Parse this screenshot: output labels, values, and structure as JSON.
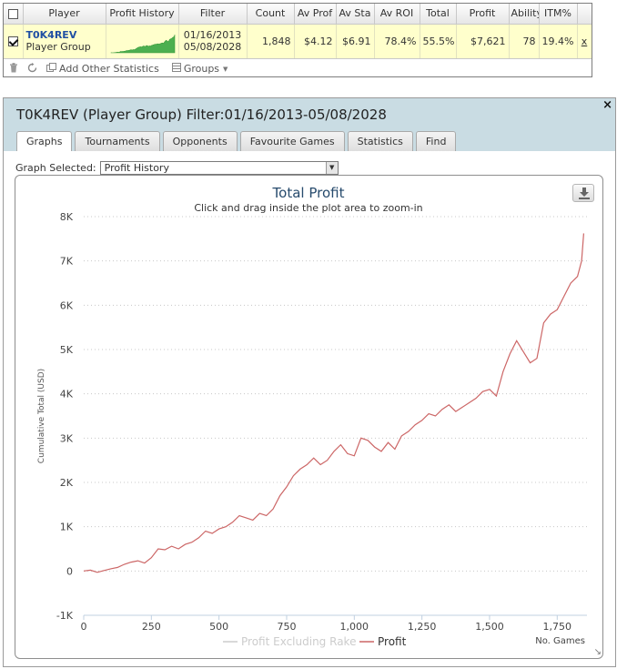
{
  "stats_table": {
    "columns": [
      "",
      "Player",
      "Profit History",
      "Filter",
      "Count",
      "Av Prof",
      "Av Sta",
      "Av ROI",
      "Total",
      "Profit",
      "Ability",
      "ITM%",
      ""
    ],
    "row": {
      "selected": true,
      "player_name": "T0K4REV",
      "player_type": "Player Group",
      "filter_start": "01/16/2013",
      "filter_end": "05/08/2028",
      "count": "1,848",
      "av_profit": "$4.12",
      "av_stake": "$6.91",
      "av_roi": "78.4%",
      "total": "55.5%",
      "profit": "$7,621",
      "ability": "78",
      "itm": "19.4%",
      "close": "x"
    },
    "toolbar": {
      "delete_icon": "trash-icon",
      "refresh_icon": "refresh-icon",
      "add_stats_label": "Add Other Statistics",
      "groups_label": "Groups"
    }
  },
  "report": {
    "title": "T0K4REV (Player Group) Filter:01/16/2013-05/08/2028",
    "close_label": "×",
    "tabs": [
      "Graphs",
      "Tournaments",
      "Opponents",
      "Favourite Games",
      "Statistics",
      "Find"
    ],
    "active_tab": "Graphs",
    "graph_selected_label": "Graph Selected:",
    "graph_selected_value": "Profit History"
  },
  "chart_data": {
    "type": "line",
    "title": "Total Profit",
    "subtitle": "Click and drag inside the plot area to zoom-in",
    "xlabel": "No. Games",
    "ylabel": "Cumulative Total (USD)",
    "xlim": [
      0,
      1860
    ],
    "ylim": [
      -1000,
      8000
    ],
    "x_ticks": [
      0,
      250,
      500,
      750,
      1000,
      1250,
      1500,
      1750
    ],
    "x_tick_labels": [
      "0",
      "250",
      "500",
      "750",
      "1,000",
      "1,250",
      "1,500",
      "1,750"
    ],
    "y_ticks": [
      -1000,
      0,
      1000,
      2000,
      3000,
      4000,
      5000,
      6000,
      7000,
      8000
    ],
    "y_tick_labels": [
      "-1K",
      "0",
      "1K",
      "2K",
      "3K",
      "4K",
      "5K",
      "6K",
      "7K",
      "8K"
    ],
    "grid": true,
    "legend_position": "bottom-center",
    "series": [
      {
        "name": "Profit Excluding Rake",
        "color": "#dddddd",
        "visible": false,
        "x": [],
        "y": []
      },
      {
        "name": "Profit",
        "color": "#cc6666",
        "visible": true,
        "x": [
          0,
          25,
          50,
          75,
          100,
          125,
          150,
          175,
          200,
          225,
          250,
          275,
          300,
          325,
          350,
          375,
          400,
          425,
          450,
          475,
          500,
          525,
          550,
          575,
          600,
          625,
          650,
          675,
          700,
          725,
          750,
          775,
          800,
          825,
          850,
          875,
          900,
          925,
          950,
          975,
          1000,
          1025,
          1050,
          1075,
          1100,
          1125,
          1150,
          1175,
          1200,
          1225,
          1250,
          1275,
          1300,
          1325,
          1350,
          1375,
          1400,
          1425,
          1450,
          1475,
          1500,
          1525,
          1550,
          1575,
          1600,
          1625,
          1650,
          1675,
          1700,
          1725,
          1750,
          1775,
          1800,
          1825,
          1840,
          1848
        ],
        "y": [
          0,
          20,
          -30,
          10,
          50,
          80,
          150,
          200,
          230,
          180,
          300,
          500,
          480,
          560,
          500,
          600,
          650,
          750,
          900,
          850,
          950,
          1000,
          1100,
          1250,
          1200,
          1150,
          1300,
          1250,
          1400,
          1700,
          1900,
          2150,
          2300,
          2400,
          2550,
          2400,
          2500,
          2700,
          2850,
          2650,
          2600,
          3000,
          2950,
          2800,
          2700,
          2900,
          2750,
          3050,
          3150,
          3300,
          3400,
          3550,
          3500,
          3650,
          3750,
          3600,
          3700,
          3800,
          3900,
          4050,
          4100,
          3950,
          4500,
          4900,
          5200,
          4950,
          4700,
          4800,
          5600,
          5800,
          5900,
          6200,
          6500,
          6650,
          7000,
          7621
        ]
      }
    ]
  }
}
